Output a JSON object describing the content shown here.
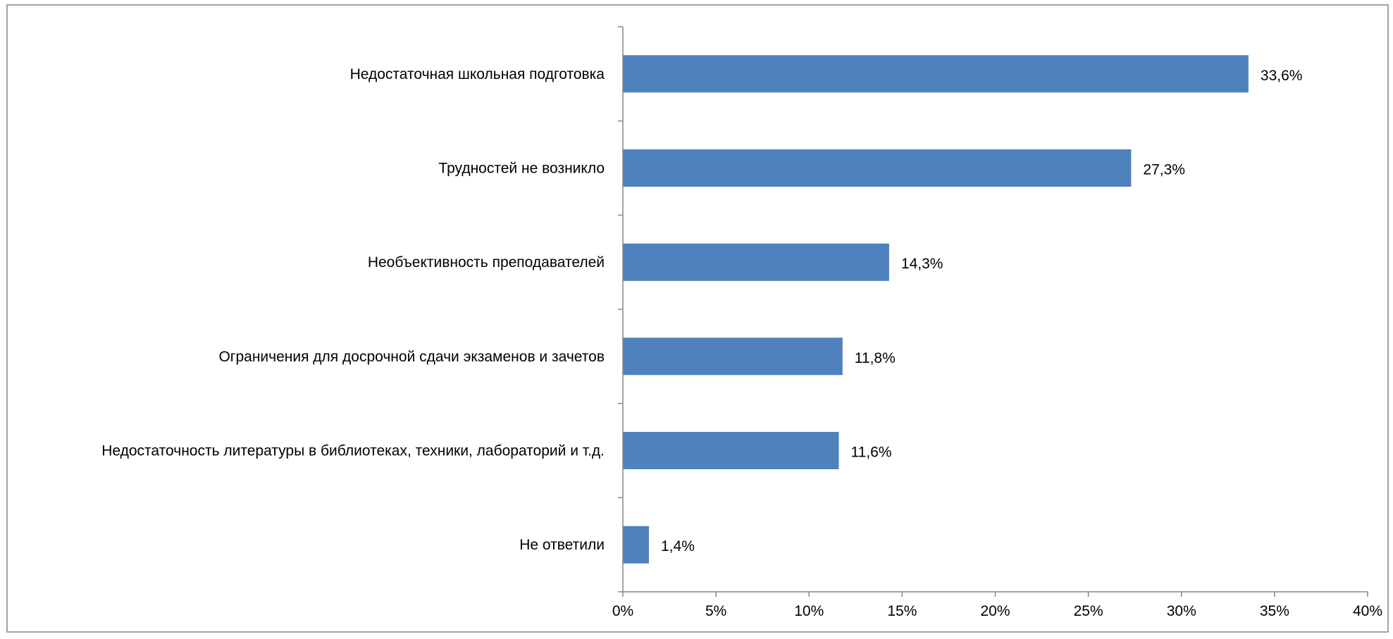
{
  "chart_data": {
    "type": "bar",
    "orientation": "horizontal",
    "title": "",
    "xlabel": "",
    "ylabel": "",
    "categories": [
      "Недостаточная школьная подготовка",
      "Трудностей не возникло",
      "Необъективность преподавателей",
      "Ограничения для досрочной сдачи экзаменов и зачетов",
      "Недостаточность литературы в библиотеках, техники, лабораторий и т.д.",
      "Не ответили"
    ],
    "values": [
      33.6,
      27.3,
      14.3,
      11.8,
      11.6,
      1.4
    ],
    "value_labels": [
      "33,6%",
      "27,3%",
      "14,3%",
      "11,8%",
      "11,6%",
      "1,4%"
    ],
    "xlim": [
      0,
      40
    ],
    "xticks": [
      0,
      5,
      10,
      15,
      20,
      25,
      30,
      35,
      40
    ],
    "xtick_labels": [
      "0%",
      "5%",
      "10%",
      "15%",
      "20%",
      "25%",
      "30%",
      "35%",
      "40%"
    ],
    "grid": false,
    "legend": "none",
    "colors": {
      "bar": "#4f81bd",
      "axis": "#868686",
      "text": "#000000",
      "border": "#868686"
    }
  }
}
